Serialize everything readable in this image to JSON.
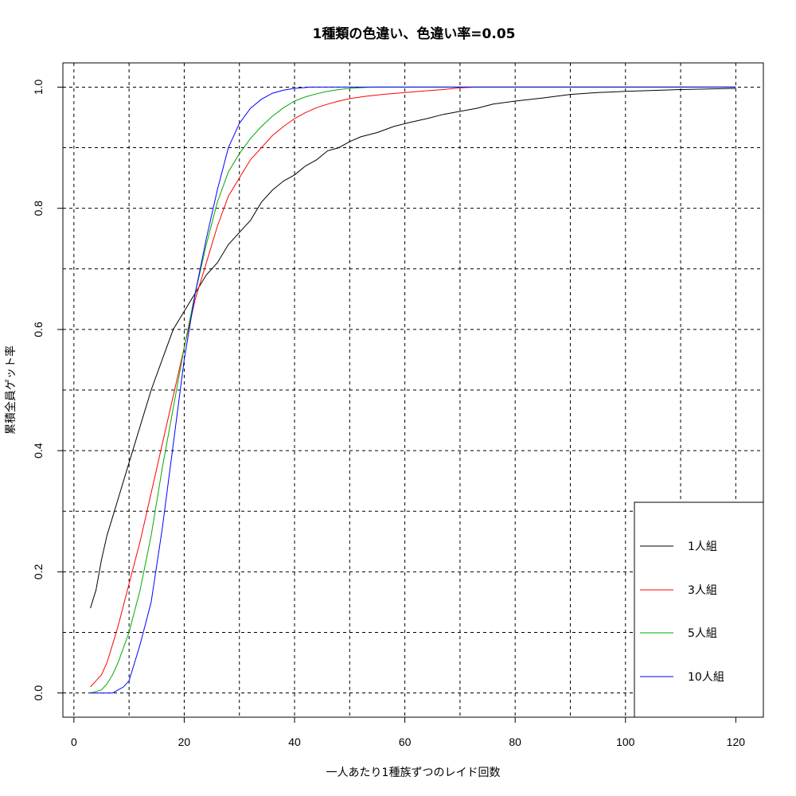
{
  "chart_data": {
    "type": "line",
    "title": "1種類の色違い、色違い率=0.05",
    "xlabel": "一人あたり1種族ずつのレイド回数",
    "ylabel": "累積全員ゲット率",
    "xlim": [
      -2,
      125
    ],
    "ylim": [
      -0.04,
      1.04
    ],
    "xticks": [
      0,
      20,
      40,
      60,
      80,
      100,
      120
    ],
    "yticks": [
      0.0,
      0.2,
      0.4,
      0.6,
      0.8,
      1.0
    ],
    "ytick_labels": [
      "0.0",
      "0.2",
      "0.4",
      "0.6",
      "0.8",
      "1.0"
    ],
    "grid_x": [
      0,
      10,
      20,
      30,
      40,
      50,
      60,
      70,
      80,
      90,
      100,
      110,
      120
    ],
    "grid_y": [
      0.0,
      0.1,
      0.2,
      0.3,
      0.4,
      0.5,
      0.6,
      0.7,
      0.8,
      0.9,
      1.0
    ],
    "grid": true,
    "legend_position": "bottom-right",
    "series": [
      {
        "name": "1人組",
        "color": "#000000",
        "points": [
          [
            3,
            0.14
          ],
          [
            4,
            0.17
          ],
          [
            5,
            0.22
          ],
          [
            6,
            0.26
          ],
          [
            7,
            0.29
          ],
          [
            8,
            0.32
          ],
          [
            10,
            0.38
          ],
          [
            12,
            0.44
          ],
          [
            14,
            0.5
          ],
          [
            16,
            0.55
          ],
          [
            18,
            0.6
          ],
          [
            20,
            0.63
          ],
          [
            22,
            0.66
          ],
          [
            24,
            0.69
          ],
          [
            26,
            0.71
          ],
          [
            28,
            0.74
          ],
          [
            30,
            0.76
          ],
          [
            32,
            0.78
          ],
          [
            34,
            0.81
          ],
          [
            36,
            0.83
          ],
          [
            38,
            0.845
          ],
          [
            40,
            0.855
          ],
          [
            42,
            0.87
          ],
          [
            44,
            0.88
          ],
          [
            46,
            0.895
          ],
          [
            48,
            0.9
          ],
          [
            50,
            0.91
          ],
          [
            52,
            0.918
          ],
          [
            55,
            0.925
          ],
          [
            58,
            0.935
          ],
          [
            61,
            0.942
          ],
          [
            64,
            0.948
          ],
          [
            67,
            0.955
          ],
          [
            70,
            0.96
          ],
          [
            73,
            0.965
          ],
          [
            76,
            0.972
          ],
          [
            80,
            0.977
          ],
          [
            85,
            0.982
          ],
          [
            90,
            0.988
          ],
          [
            95,
            0.991
          ],
          [
            100,
            0.993
          ],
          [
            110,
            0.996
          ],
          [
            120,
            0.998
          ]
        ]
      },
      {
        "name": "3人組",
        "color": "#ff0000",
        "points": [
          [
            3,
            0.01
          ],
          [
            4,
            0.02
          ],
          [
            5,
            0.03
          ],
          [
            6,
            0.05
          ],
          [
            7,
            0.08
          ],
          [
            8,
            0.11
          ],
          [
            10,
            0.18
          ],
          [
            12,
            0.25
          ],
          [
            14,
            0.33
          ],
          [
            16,
            0.41
          ],
          [
            18,
            0.49
          ],
          [
            20,
            0.57
          ],
          [
            22,
            0.65
          ],
          [
            24,
            0.71
          ],
          [
            26,
            0.77
          ],
          [
            28,
            0.82
          ],
          [
            30,
            0.85
          ],
          [
            32,
            0.88
          ],
          [
            34,
            0.9
          ],
          [
            36,
            0.92
          ],
          [
            38,
            0.935
          ],
          [
            40,
            0.948
          ],
          [
            42,
            0.958
          ],
          [
            44,
            0.966
          ],
          [
            46,
            0.972
          ],
          [
            48,
            0.977
          ],
          [
            50,
            0.981
          ],
          [
            53,
            0.985
          ],
          [
            56,
            0.988
          ],
          [
            60,
            0.991
          ],
          [
            64,
            0.994
          ],
          [
            67,
            0.996
          ],
          [
            70,
            0.999
          ],
          [
            73,
            1.0
          ],
          [
            120,
            1.0
          ]
        ]
      },
      {
        "name": "5人組",
        "color": "#00aa00",
        "points": [
          [
            3,
            0.0
          ],
          [
            5,
            0.005
          ],
          [
            6,
            0.015
          ],
          [
            7,
            0.03
          ],
          [
            8,
            0.05
          ],
          [
            10,
            0.1
          ],
          [
            12,
            0.17
          ],
          [
            14,
            0.26
          ],
          [
            16,
            0.37
          ],
          [
            18,
            0.47
          ],
          [
            20,
            0.57
          ],
          [
            22,
            0.66
          ],
          [
            24,
            0.74
          ],
          [
            26,
            0.81
          ],
          [
            28,
            0.86
          ],
          [
            30,
            0.89
          ],
          [
            32,
            0.915
          ],
          [
            34,
            0.935
          ],
          [
            36,
            0.952
          ],
          [
            38,
            0.966
          ],
          [
            40,
            0.977
          ],
          [
            42,
            0.984
          ],
          [
            44,
            0.989
          ],
          [
            46,
            0.993
          ],
          [
            48,
            0.996
          ],
          [
            50,
            0.998
          ],
          [
            54,
            1.0
          ],
          [
            120,
            1.0
          ]
        ]
      },
      {
        "name": "10人組",
        "color": "#0000ff",
        "points": [
          [
            3,
            0.0
          ],
          [
            7,
            0.0
          ],
          [
            8,
            0.005
          ],
          [
            9,
            0.01
          ],
          [
            10,
            0.02
          ],
          [
            11,
            0.05
          ],
          [
            12,
            0.08
          ],
          [
            14,
            0.15
          ],
          [
            16,
            0.27
          ],
          [
            18,
            0.41
          ],
          [
            20,
            0.55
          ],
          [
            22,
            0.66
          ],
          [
            24,
            0.75
          ],
          [
            26,
            0.83
          ],
          [
            28,
            0.9
          ],
          [
            30,
            0.94
          ],
          [
            32,
            0.965
          ],
          [
            34,
            0.98
          ],
          [
            36,
            0.99
          ],
          [
            38,
            0.995
          ],
          [
            40,
            0.998
          ],
          [
            43,
            1.0
          ],
          [
            120,
            1.0
          ]
        ]
      }
    ]
  }
}
